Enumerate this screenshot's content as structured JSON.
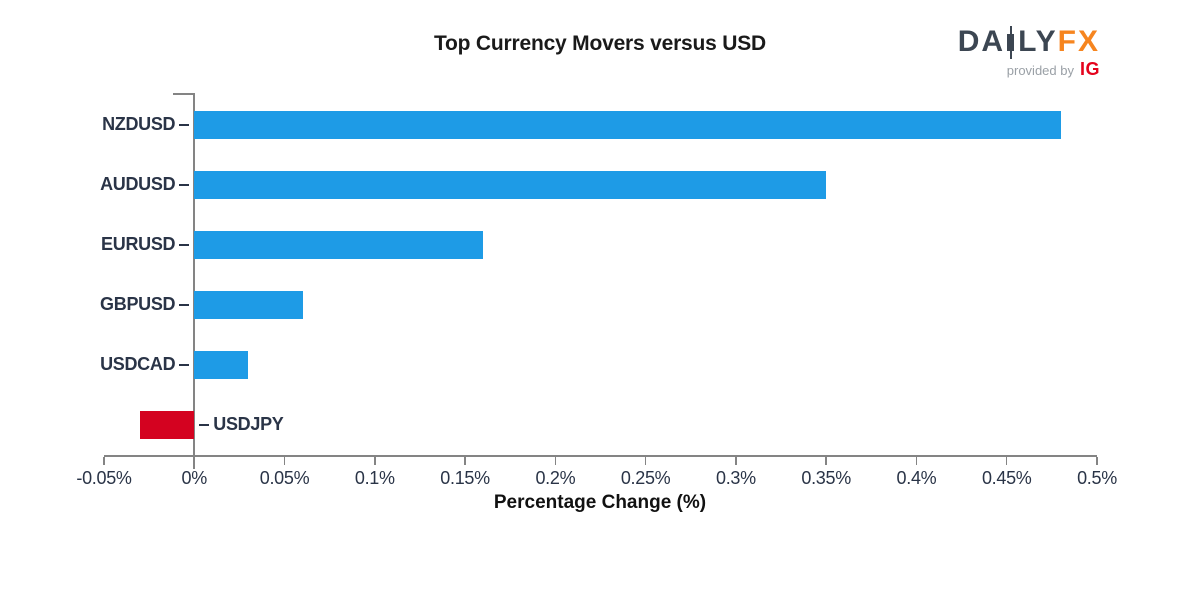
{
  "title": "Top Currency Movers versus USD",
  "logo": {
    "word_left_1": "DA",
    "word_left_2": "LY",
    "word_right": "FX",
    "provided_by": "provided by",
    "ig": "IG"
  },
  "chart_data": {
    "type": "bar",
    "orientation": "horizontal",
    "title": "Top Currency Movers versus USD",
    "xlabel": "Percentage Change (%)",
    "categories": [
      "NZDUSD",
      "AUDUSD",
      "EURUSD",
      "GBPUSD",
      "USDCAD",
      "USDJPY"
    ],
    "values": [
      0.48,
      0.35,
      0.16,
      0.06,
      0.03,
      -0.03
    ],
    "xlim": [
      -0.05,
      0.5
    ],
    "xticks": [
      -0.05,
      0,
      0.05,
      0.1,
      0.15,
      0.2,
      0.25,
      0.3,
      0.35,
      0.4,
      0.45,
      0.5
    ],
    "xtick_labels": [
      "-0.05%",
      "0%",
      "0.05%",
      "0.1%",
      "0.15%",
      "0.2%",
      "0.25%",
      "0.3%",
      "0.35%",
      "0.4%",
      "0.45%",
      "0.5%"
    ],
    "grid": false,
    "legend": "none",
    "positive_color": "#1e9be6",
    "negative_color": "#d40220",
    "axis_color": "#848484",
    "label_color": "#2a3447"
  }
}
